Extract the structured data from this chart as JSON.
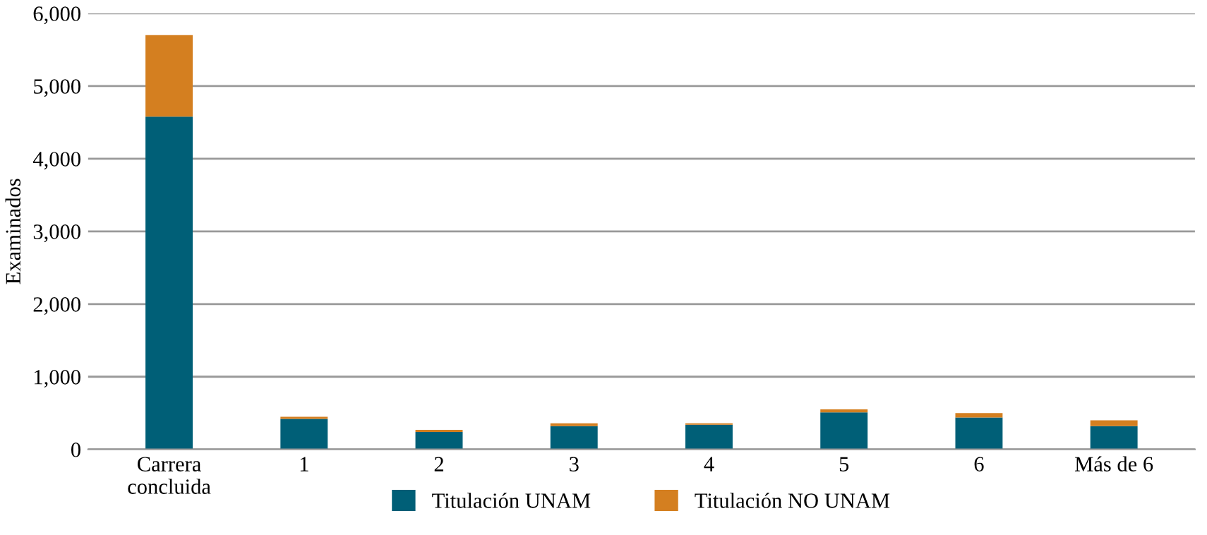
{
  "chart_data": {
    "type": "bar",
    "stacked": true,
    "ylabel": "Examinados",
    "categories": [
      "Carrera\nconcluida",
      "1",
      "2",
      "3",
      "4",
      "5",
      "6",
      "Más de 6"
    ],
    "series": [
      {
        "name": "Titulación UNAM",
        "color": "#005f77",
        "values": [
          4580,
          420,
          240,
          320,
          340,
          510,
          440,
          320
        ]
      },
      {
        "name": "Titulación NO UNAM",
        "color": "#d47f20",
        "values": [
          1120,
          30,
          30,
          40,
          20,
          40,
          60,
          80
        ]
      }
    ],
    "ylim": [
      0,
      6000
    ],
    "yticks": [
      0,
      {
        "value": 1000,
        "label": "1,000"
      },
      {
        "value": 2000,
        "label": "2,000"
      },
      {
        "value": 3000,
        "label": "3,000"
      },
      {
        "value": 4000,
        "label": "4,000"
      },
      {
        "value": 5000,
        "label": "5,000"
      },
      {
        "value": 6000,
        "label": "6,000"
      }
    ],
    "grid": "y",
    "legend": "bottom"
  }
}
